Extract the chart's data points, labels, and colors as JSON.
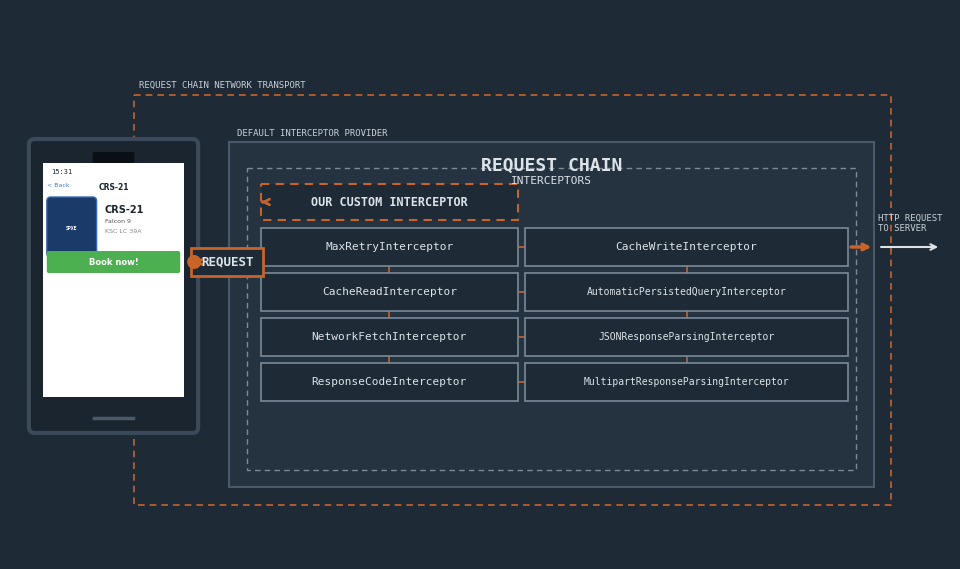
{
  "bg_color": "#1e2a35",
  "text_color": "#c8d0d8",
  "orange_color": "#c8632a",
  "white_color": "#dde3e9",
  "green_color": "#4caf50",
  "box_bg": "#253340",
  "box_border": "#4a5a6a",
  "title_text": "REQUEST CHAIN",
  "interceptors_label": "INTERCEPTORS",
  "custom_interceptor_label": "OUR CUSTOM INTERCEPTOR",
  "request_label": "REQUEST",
  "outer_label": "REQUEST CHAIN NETWORK TRANSPORT",
  "provider_label": "DEFAULT INTERCEPTOR PROVIDER",
  "http_label": "HTTP REQUEST\nTO SERVER",
  "left_boxes": [
    "MaxRetryInterceptor",
    "CacheReadInterceptor",
    "NetworkFetchInterceptor",
    "ResponseCodeInterceptor"
  ],
  "right_boxes": [
    "CacheWriteInterceptor",
    "AutomaticPersistedQueryInterceptor",
    "JSONResponseParsingInterceptor",
    "MultipartResponseParsingInterceptor"
  ]
}
